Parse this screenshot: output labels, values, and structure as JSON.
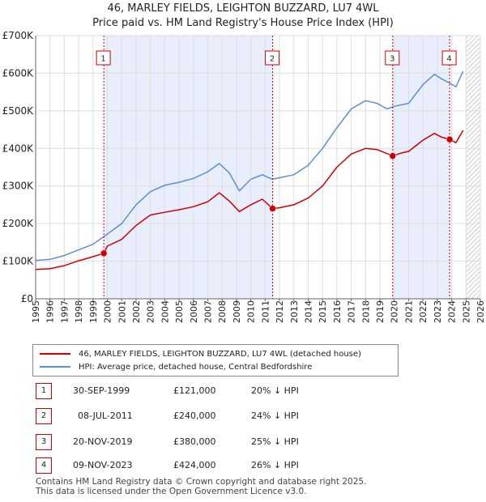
{
  "header": {
    "title_line1": "46, MARLEY FIELDS, LEIGHTON BUZZARD, LU7 4WL",
    "title_line2": "Price paid vs. HM Land Registry's House Price Index (HPI)"
  },
  "chart_data": {
    "type": "line",
    "title": "46, MARLEY FIELDS, LEIGHTON BUZZARD, LU7 4WL — Price paid vs. HM Land Registry's House Price Index (HPI)",
    "xlabel": "",
    "ylabel": "",
    "xlim": [
      1995,
      2026
    ],
    "ylim": [
      0,
      700000
    ],
    "y_ticks": [
      0,
      100000,
      200000,
      300000,
      400000,
      500000,
      600000,
      700000
    ],
    "y_tick_labels": [
      "£0",
      "£100K",
      "£200K",
      "£300K",
      "£400K",
      "£500K",
      "£600K",
      "£700K"
    ],
    "x_ticks": [
      1995,
      1996,
      1997,
      1998,
      1999,
      2000,
      2001,
      2002,
      2003,
      2004,
      2005,
      2006,
      2007,
      2008,
      2009,
      2010,
      2011,
      2012,
      2013,
      2014,
      2015,
      2016,
      2017,
      2018,
      2019,
      2020,
      2021,
      2022,
      2023,
      2024,
      2025,
      2026
    ],
    "x_tick_labels": [
      "1995",
      "1996",
      "1997",
      "1998",
      "1999",
      "2000",
      "2001",
      "2002",
      "2003",
      "2004",
      "2005",
      "2006",
      "2007",
      "2008",
      "2009",
      "2010",
      "2011",
      "2012",
      "2013",
      "2014",
      "2015",
      "2016",
      "2017",
      "2018",
      "2019",
      "2020",
      "2021",
      "2022",
      "2023",
      "2024",
      "2025",
      "2026"
    ],
    "grid": true,
    "future_from": 2025.0,
    "ownership_periods": [
      [
        1999.75,
        2011.52
      ],
      [
        2019.89,
        2023.86
      ]
    ],
    "series": [
      {
        "name": "46, MARLEY FIELDS, LEIGHTON BUZZARD, LU7 4WL (detached house)",
        "color": "#cc0000",
        "x": [
          1995,
          1996,
          1997,
          1998,
          1999,
          1999.75,
          2000,
          2001,
          2002,
          2003,
          2004,
          2005,
          2006,
          2007,
          2007.8,
          2008.5,
          2009.2,
          2010,
          2010.8,
          2011.52,
          2012,
          2013,
          2014,
          2015,
          2016,
          2017,
          2018,
          2018.8,
          2019.89,
          2020.5,
          2021,
          2022,
          2022.8,
          2023.3,
          2023.86,
          2024.3,
          2024.8
        ],
        "y": [
          78000,
          80000,
          88000,
          101000,
          112000,
          121000,
          140000,
          158000,
          195000,
          223000,
          230000,
          237000,
          245000,
          258000,
          282000,
          260000,
          232000,
          250000,
          265000,
          240000,
          242000,
          250000,
          268000,
          300000,
          350000,
          385000,
          400000,
          397000,
          380000,
          388000,
          392000,
          422000,
          440000,
          430000,
          424000,
          415000,
          448000
        ]
      },
      {
        "name": "HPI: Average price, detached house, Central Bedfordshire",
        "color": "#5b8fd1",
        "x": [
          1995,
          1996,
          1997,
          1998,
          1999,
          2000,
          2001,
          2002,
          2003,
          2004,
          2005,
          2006,
          2007,
          2007.8,
          2008.5,
          2009.2,
          2010,
          2010.8,
          2011.5,
          2012,
          2013,
          2014,
          2015,
          2016,
          2017,
          2018,
          2018.8,
          2019.5,
          2020,
          2021,
          2022,
          2022.8,
          2023.3,
          2023.9,
          2024.3,
          2024.8
        ],
        "y": [
          102000,
          105000,
          115000,
          130000,
          145000,
          172000,
          200000,
          250000,
          285000,
          302000,
          310000,
          320000,
          338000,
          360000,
          335000,
          287000,
          318000,
          330000,
          318000,
          322000,
          330000,
          355000,
          400000,
          455000,
          505000,
          527000,
          520000,
          505000,
          512000,
          520000,
          570000,
          597000,
          585000,
          573000,
          564000,
          605000
        ]
      }
    ],
    "sale_markers": [
      {
        "label": "1",
        "x": 1999.75,
        "y": 121000
      },
      {
        "label": "2",
        "x": 2011.52,
        "y": 240000
      },
      {
        "label": "3",
        "x": 2019.89,
        "y": 380000
      },
      {
        "label": "4",
        "x": 2023.86,
        "y": 424000
      }
    ]
  },
  "legend": {
    "items": [
      {
        "label": "46, MARLEY FIELDS, LEIGHTON BUZZARD, LU7 4WL (detached house)",
        "color": "#cc0000"
      },
      {
        "label": "HPI: Average price, detached house, Central Bedfordshire",
        "color": "#5b8fd1"
      }
    ]
  },
  "transactions": [
    {
      "num": "1",
      "date": "30-SEP-1999",
      "price": "£121,000",
      "hpi": "20% ↓ HPI"
    },
    {
      "num": "2",
      "date": "08-JUL-2011",
      "price": "£240,000",
      "hpi": "24% ↓ HPI"
    },
    {
      "num": "3",
      "date": "20-NOV-2019",
      "price": "£380,000",
      "hpi": "25% ↓ HPI"
    },
    {
      "num": "4",
      "date": "09-NOV-2023",
      "price": "£424,000",
      "hpi": "26% ↓ HPI"
    }
  ],
  "footer": {
    "line1": "Contains HM Land Registry data © Crown copyright and database right 2025.",
    "line2": "This data is licensed under the Open Government Licence v3.0."
  }
}
